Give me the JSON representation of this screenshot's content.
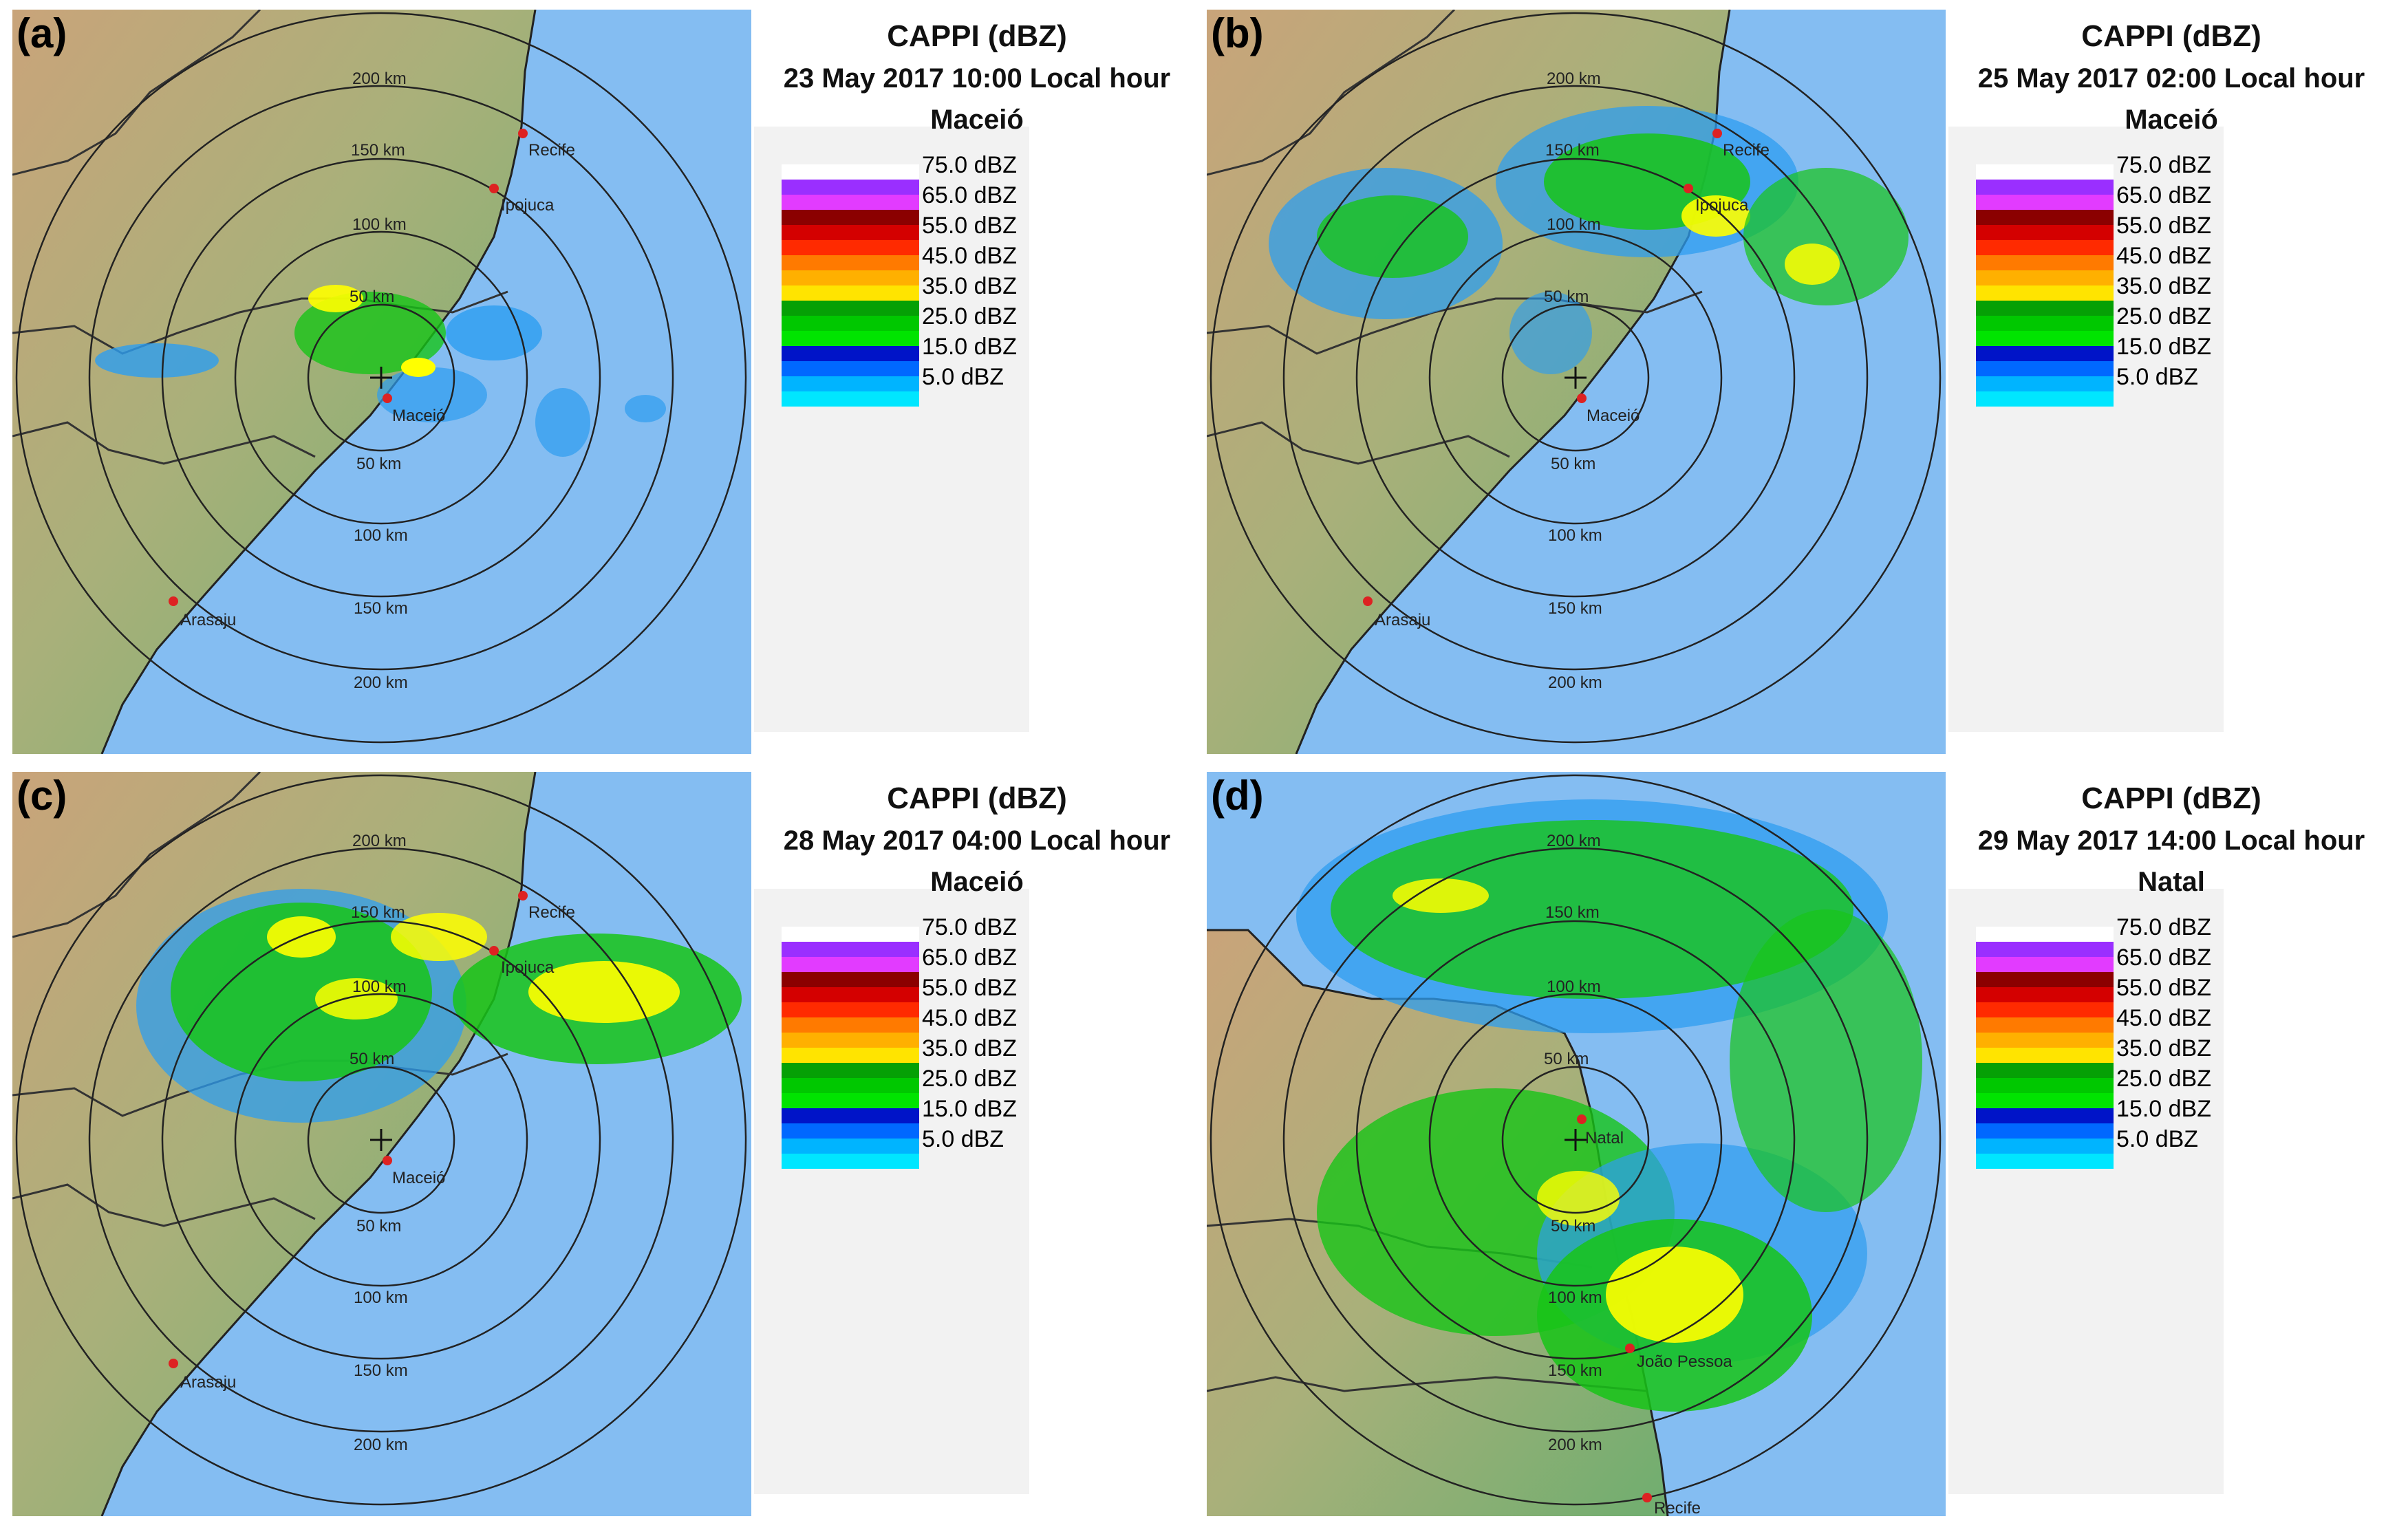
{
  "legend": {
    "colors": [
      "#ffffff",
      "#9a2fff",
      "#e23bff",
      "#8b0000",
      "#d40000",
      "#ff2a00",
      "#ff7a00",
      "#ffb000",
      "#ffe400",
      "#ffff00",
      "#05a005",
      "#00c800",
      "#00e400",
      "#0014c8",
      "#0068ff",
      "#00b4ff",
      "#00e6ff",
      "#e8f0f4"
    ],
    "labels": [
      "75.0 dBZ",
      "65.0 dBZ",
      "55.0 dBZ",
      "45.0 dBZ",
      "35.0 dBZ",
      "25.0 dBZ",
      "15.0 dBZ",
      "5.0 dBZ"
    ]
  },
  "panels": [
    {
      "label": "(a)",
      "title": "CAPPI (dBZ)",
      "datetime": "23 May 2017 10:00 Local hour",
      "radar": "Maceió",
      "range_labels": [
        "50 km",
        "100 km",
        "150 km",
        "200 km",
        "50 km",
        "100 km",
        "150 km",
        "200 km"
      ],
      "cities": [
        "Recife",
        "Ipojuca",
        "Maceió",
        "Arasaju"
      ]
    },
    {
      "label": "(b)",
      "title": "CAPPI (dBZ)",
      "datetime": "25 May 2017 02:00 Local hour",
      "radar": "Maceió",
      "range_labels": [
        "50 km",
        "100 km",
        "150 km",
        "200 km",
        "50 km",
        "100 km",
        "150 km",
        "200 km"
      ],
      "cities": [
        "Recife",
        "Ipojuca",
        "Maceió",
        "Arasaju"
      ]
    },
    {
      "label": "(c)",
      "title": "CAPPI (dBZ)",
      "datetime": "28 May 2017 04:00 Local hour",
      "radar": "Maceió",
      "range_labels": [
        "50 km",
        "100 km",
        "150 km",
        "200 km",
        "50 km",
        "100 km",
        "150 km",
        "200 km"
      ],
      "cities": [
        "Recife",
        "Ipojuca",
        "Maceió",
        "Arasaju"
      ]
    },
    {
      "label": "(d)",
      "title": "CAPPI (dBZ)",
      "datetime": "29 May 2017 14:00 Local hour",
      "radar": "Natal",
      "range_labels": [
        "50 km",
        "100 km",
        "150 km",
        "200 km",
        "50 km",
        "100 km",
        "150 km",
        "200 km"
      ],
      "cities": [
        "Natal",
        "João Pessoa",
        "Recife"
      ]
    }
  ]
}
